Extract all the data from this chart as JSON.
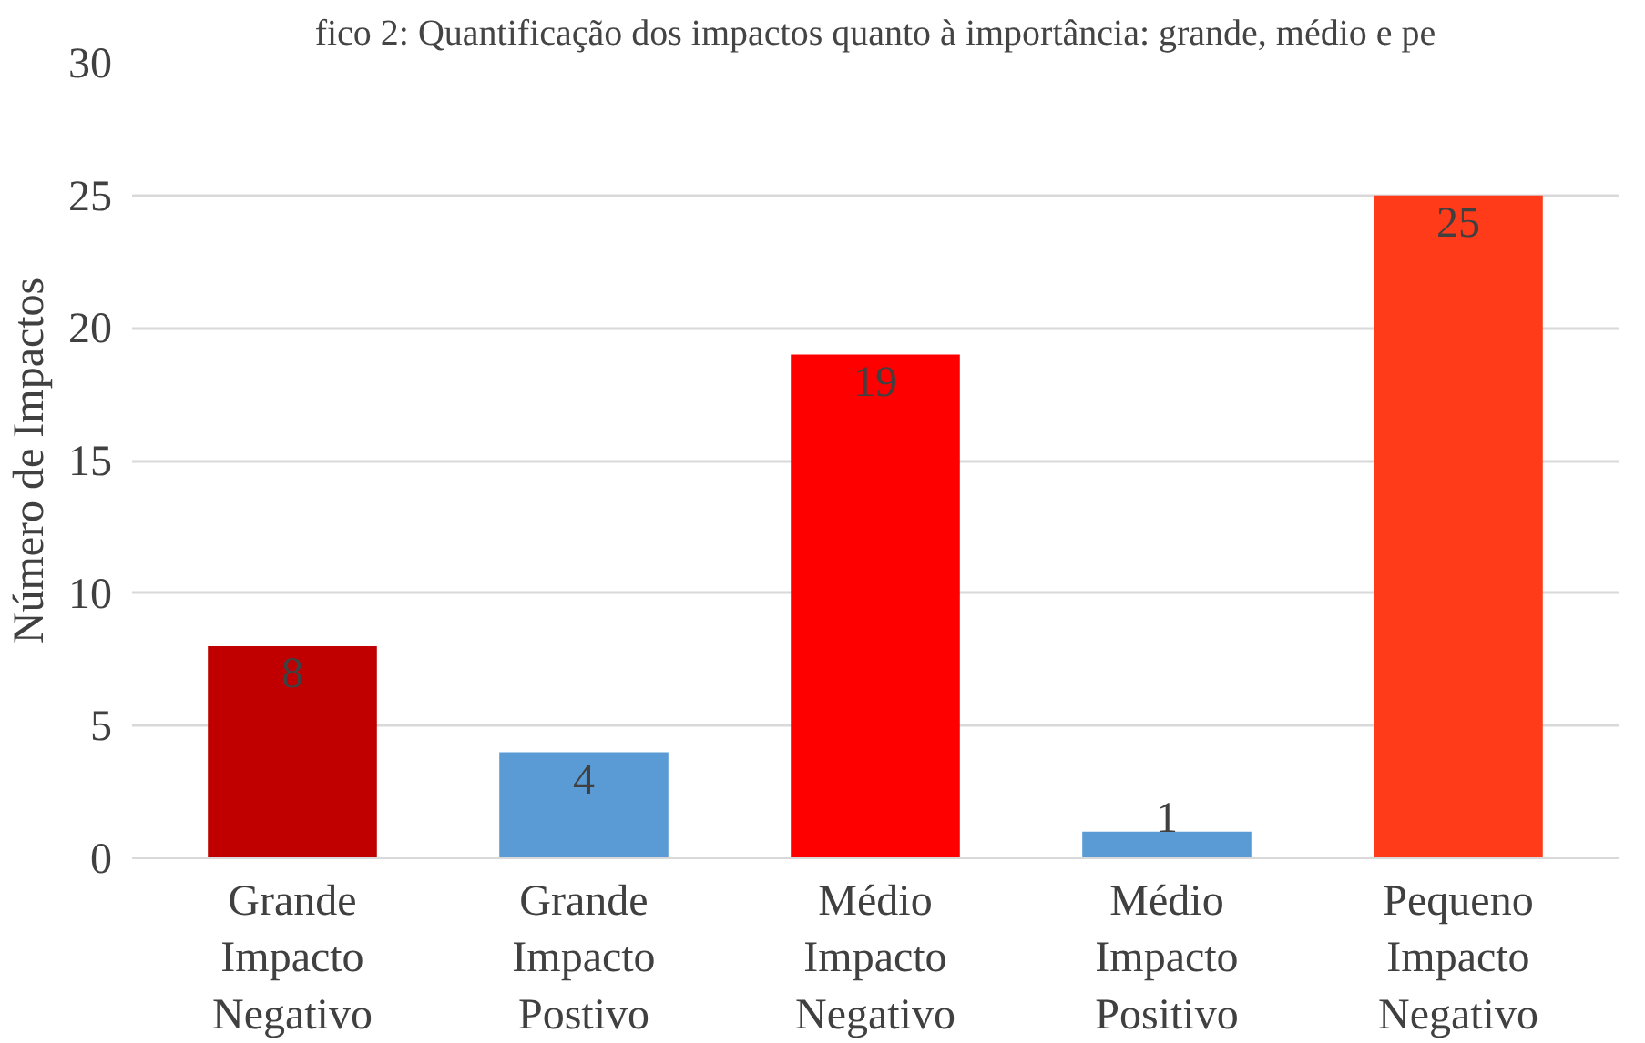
{
  "chart_data": {
    "type": "bar",
    "title": "fico 2: Quantificação dos impactos quanto à importância: grande, médio e pe",
    "ylabel": "Número de Impactos",
    "categories": [
      "Grande\nImpacto\nNegativo",
      "Grande\nImpacto\nPostivo",
      "Médio\nImpacto\nNegativo",
      "Médio\nImpacto\nPositivo",
      "Pequeno\nImpacto\nNegativo"
    ],
    "values": [
      8,
      4,
      19,
      1,
      25
    ],
    "colors": [
      "#c00000",
      "#5b9bd5",
      "#ff0000",
      "#5b9bd5",
      "#ff3b1a"
    ],
    "ylim": [
      0,
      30
    ],
    "yticks": [
      0,
      5,
      10,
      15,
      20,
      25,
      30
    ],
    "grid": "y",
    "data_labels": true
  }
}
